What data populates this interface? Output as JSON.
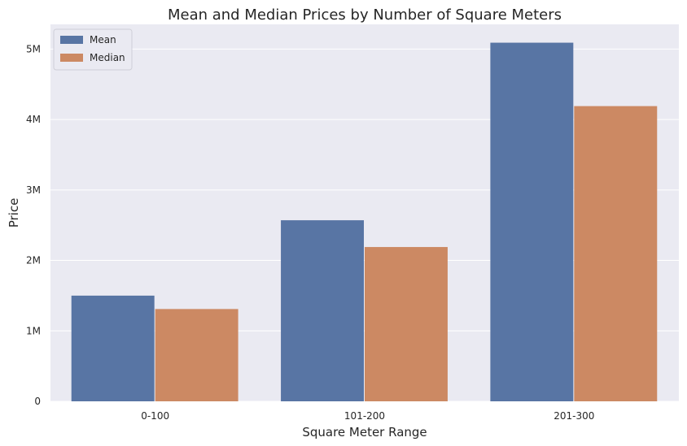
{
  "chart_data": {
    "type": "bar",
    "title": "Mean and Median Prices by Number of Square Meters",
    "xlabel": "Square Meter Range",
    "ylabel": "Price",
    "categories": [
      "0-100",
      "101-200",
      "201-300"
    ],
    "series": [
      {
        "name": "Mean",
        "color": "#5875a4",
        "values": [
          1500000,
          2570000,
          5090000
        ]
      },
      {
        "name": "Median",
        "color": "#cc8963",
        "values": [
          1310000,
          2190000,
          4190000
        ]
      }
    ],
    "ylim": [
      0,
      5350000
    ],
    "yticks": [
      0,
      1000000,
      2000000,
      3000000,
      4000000,
      5000000
    ],
    "ytick_labels": [
      "0",
      "1M",
      "2M",
      "3M",
      "4M",
      "5M"
    ],
    "grid": true,
    "legend_position": "top-left",
    "background_color": "#eaeaf2",
    "grid_color": "#ffffff"
  }
}
